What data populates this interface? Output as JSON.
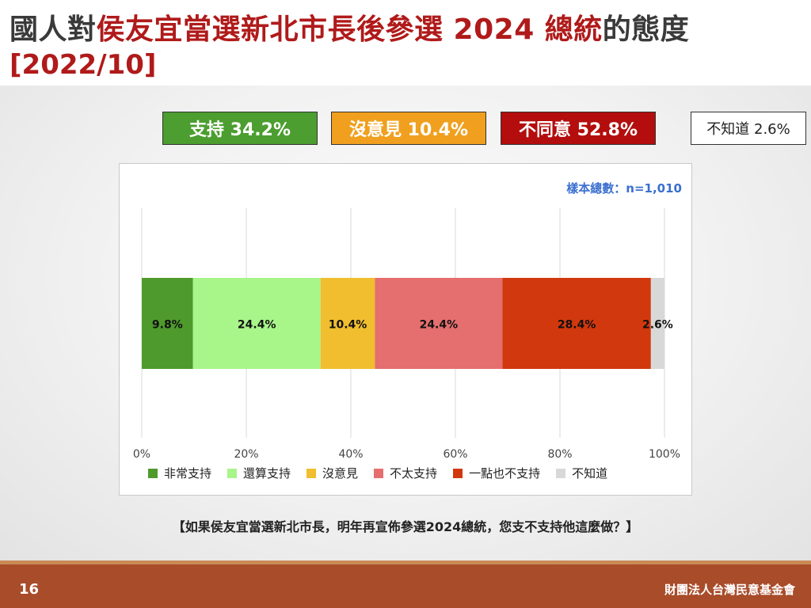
{
  "title": {
    "prefix": "國人對",
    "highlight": "侯友宜當選新北市長後參選 2024 總統",
    "suffix": "的態度",
    "date": "[2022/10]"
  },
  "summary": {
    "support": "支持 34.2%",
    "neutral": "沒意見 10.4%",
    "oppose": "不同意 52.8%",
    "unknown": "不知道 2.6%"
  },
  "sample_note": "樣本總數：n=1,010",
  "question": "【如果侯友宜當選新北市長，明年再宣佈參選2024總統，您支不支持他這麼做？】",
  "footer": {
    "page_number": "16",
    "organization": "財團法人台灣民意基金會"
  },
  "chart_data": {
    "type": "bar",
    "orientation": "horizontal-stacked",
    "title": "",
    "xlabel": "",
    "ylabel": "",
    "xlim": [
      0,
      100
    ],
    "x_ticks": [
      "0%",
      "20%",
      "40%",
      "60%",
      "80%",
      "100%"
    ],
    "grid": true,
    "legend_position": "bottom",
    "series": [
      {
        "name": "非常支持",
        "value": 9.8,
        "label": "9.8%",
        "color": "#4e9a2c"
      },
      {
        "name": "還算支持",
        "value": 24.4,
        "label": "24.4%",
        "color": "#a8f58a"
      },
      {
        "name": "沒意見",
        "value": 10.4,
        "label": "10.4%",
        "color": "#f0be2e"
      },
      {
        "name": "不太支持",
        "value": 24.4,
        "label": "24.4%",
        "color": "#e56e6e"
      },
      {
        "name": "一點也不支持",
        "value": 28.4,
        "label": "28.4%",
        "color": "#d2380d"
      },
      {
        "name": "不知道",
        "value": 2.6,
        "label": "2.6%",
        "color": "#d8d8d8"
      }
    ]
  }
}
